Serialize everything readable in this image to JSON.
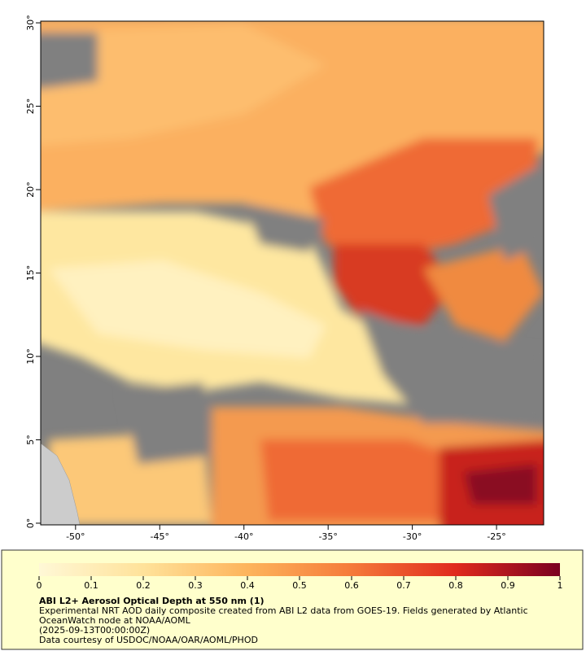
{
  "map": {
    "xlim": [
      -52.07,
      -22.2
    ],
    "ylim": [
      -0.1,
      30.1
    ],
    "xticks": [
      {
        "value": -50,
        "label": "-50°"
      },
      {
        "value": -45,
        "label": "-45°"
      },
      {
        "value": -40,
        "label": "-40°"
      },
      {
        "value": -35,
        "label": "-35°"
      },
      {
        "value": -30,
        "label": "-30°"
      },
      {
        "value": -25,
        "label": "-25°"
      }
    ],
    "yticks": [
      {
        "value": 0,
        "label": "0°"
      },
      {
        "value": 5,
        "label": "5°"
      },
      {
        "value": 10,
        "label": "10°"
      },
      {
        "value": 15,
        "label": "15°"
      },
      {
        "value": 20,
        "label": "20°"
      },
      {
        "value": 25,
        "label": "25°"
      },
      {
        "value": 30,
        "label": "30°"
      }
    ]
  },
  "colorbar": {
    "lim": [
      0,
      1
    ],
    "ticks": [
      0,
      0.1,
      0.2,
      0.3,
      0.4,
      0.5,
      0.6,
      0.7,
      0.8,
      0.9,
      1
    ]
  },
  "caption": {
    "title": "ABI L2+ Aerosol Optical Depth at 550 nm (1)",
    "lines": [
      "Experimental NRT AOD daily composite created from ABI L2 data from GOES-19. Fields generated by Atlantic",
      "OceanWatch node at NOAA/AOML",
      "(2025-09-13T00:00:00Z)",
      "Data courtesy of USDOC/NOAA/OAR/AOML/PHOD"
    ]
  }
}
